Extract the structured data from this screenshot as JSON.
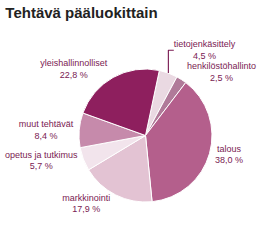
{
  "chart_data": {
    "type": "pie",
    "title": "Tehtävä pääluokittain",
    "categories": [
      "tietojenkäsittely",
      "henkilöstöhallinto",
      "talous",
      "markkinointi",
      "opetus ja tutkimus",
      "muut tehtävät",
      "yleishallinnolliset"
    ],
    "values": [
      4.5,
      2.5,
      38.0,
      17.9,
      5.7,
      8.4,
      22.8
    ],
    "value_labels": [
      "4,5 %",
      "2,5 %",
      "38,0 %",
      "17,9 %",
      "5,7 %",
      "8,4 %",
      "22,8 %"
    ],
    "colors": [
      "#ead9e2",
      "#b07a99",
      "#b45f8c",
      "#e3c3d3",
      "#f2e4ec",
      "#c68aab",
      "#8e1f5e"
    ],
    "data_labels": true
  }
}
